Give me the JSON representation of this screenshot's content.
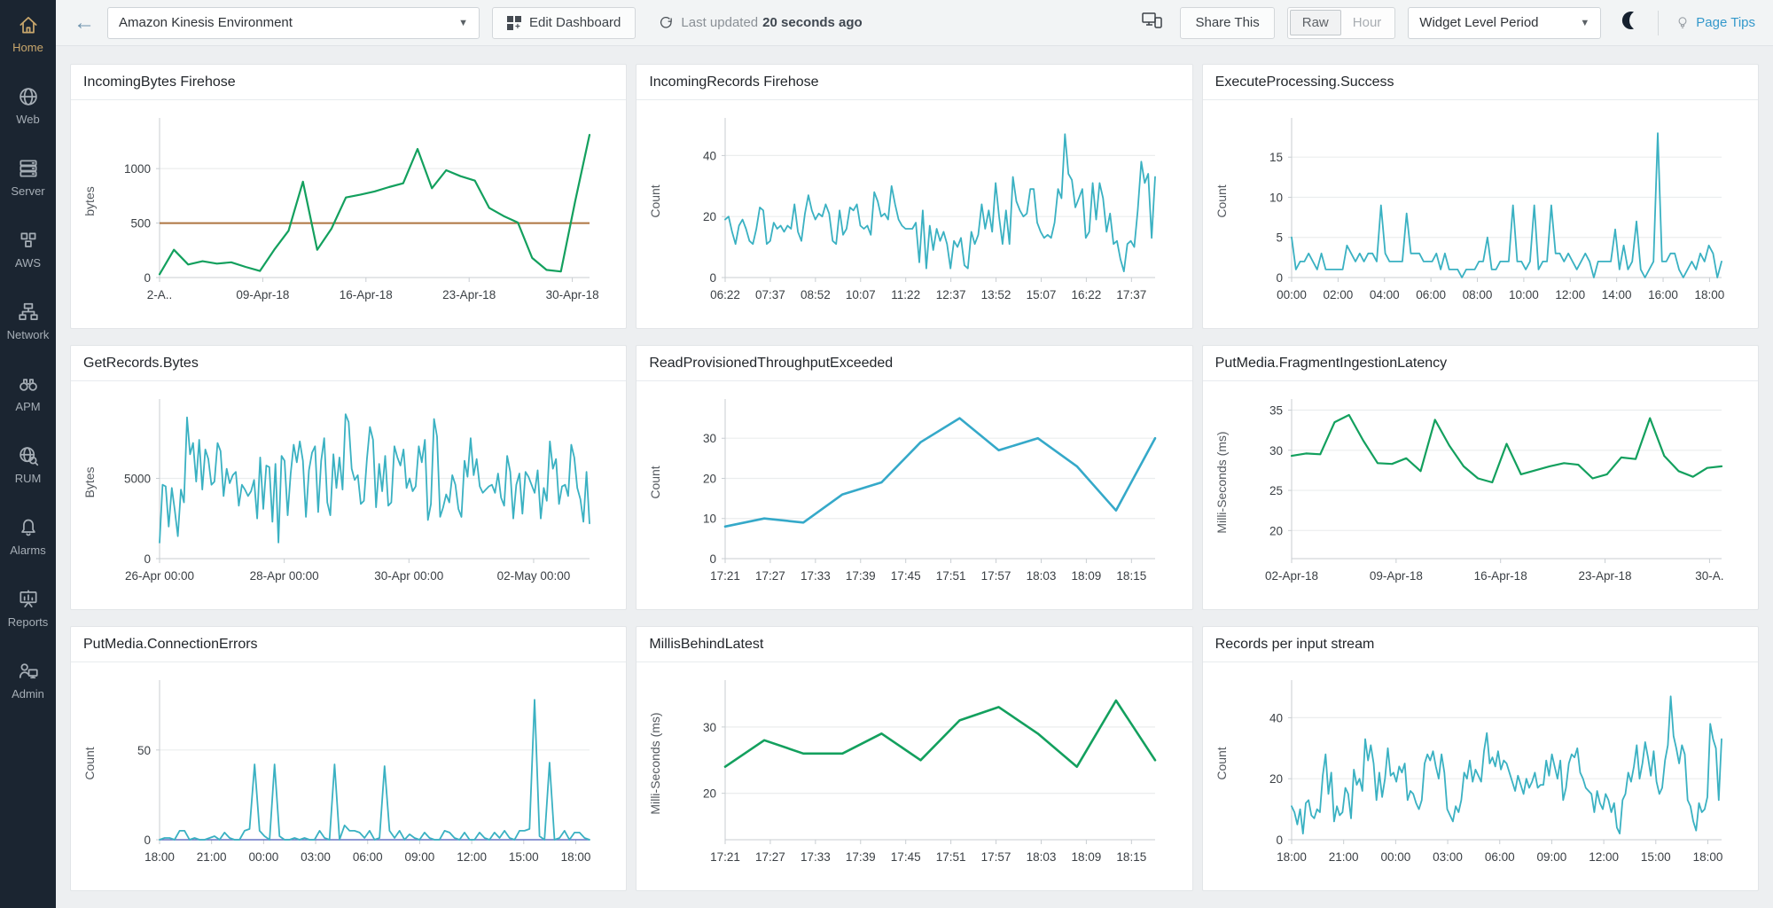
{
  "sidebar": {
    "items": [
      {
        "label": "Home",
        "icon": "home-icon",
        "active": true
      },
      {
        "label": "Web",
        "icon": "web-icon",
        "active": false
      },
      {
        "label": "Server",
        "icon": "server-icon",
        "active": false
      },
      {
        "label": "AWS",
        "icon": "aws-icon",
        "active": false
      },
      {
        "label": "Network",
        "icon": "network-icon",
        "active": false
      },
      {
        "label": "APM",
        "icon": "apm-icon",
        "active": false
      },
      {
        "label": "RUM",
        "icon": "rum-icon",
        "active": false
      },
      {
        "label": "Alarms",
        "icon": "alarms-icon",
        "active": false
      },
      {
        "label": "Reports",
        "icon": "reports-icon",
        "active": false
      },
      {
        "label": "Admin",
        "icon": "admin-icon",
        "active": false
      }
    ]
  },
  "topbar": {
    "dashboard_selector": "Amazon Kinesis Environment",
    "edit_dashboard": "Edit Dashboard",
    "last_updated_prefix": "Last updated",
    "last_updated_value": "20 seconds ago",
    "share_this": "Share This",
    "toggle_raw": "Raw",
    "toggle_hour": "Hour",
    "period_selector": "Widget Level Period",
    "page_tips": "Page Tips"
  },
  "colors": {
    "green": "#13a05e",
    "teal": "#3ab1c2",
    "threshold_orange": "#ad7440",
    "link_blue": "#3498cb",
    "sidebar_bg": "#1b2531",
    "active_gold": "#c9a76c"
  },
  "chart_data": [
    {
      "title": "IncomingBytes Firehose",
      "type": "line",
      "color": "#13a05e",
      "lw": 2.2,
      "ylabel": "bytes",
      "yticks": [
        0,
        500,
        1000
      ],
      "ylim": [
        0,
        1400
      ],
      "xticklabels": [
        "2-A..",
        "09-Apr-18",
        "16-Apr-18",
        "23-Apr-18",
        "30-Apr-18"
      ],
      "xstep": 0.24,
      "threshold": {
        "value": 500,
        "color": "#ad7440"
      },
      "values": [
        30,
        255,
        120,
        150,
        128,
        140,
        98,
        60,
        255,
        430,
        880,
        255,
        450,
        735,
        760,
        790,
        830,
        865,
        1180,
        820,
        985,
        930,
        890,
        640,
        565,
        505,
        180,
        70,
        55,
        700,
        1310
      ]
    },
    {
      "title": "IncomingRecords Firehose",
      "type": "line",
      "color": "#3ab1c2",
      "lw": 1.8,
      "ylabel": "Count",
      "yticks": [
        0,
        20,
        40
      ],
      "ylim": [
        0,
        50
      ],
      "xticklabels": [
        "06:22",
        "07:37",
        "08:52",
        "10:07",
        "11:22",
        "12:37",
        "13:52",
        "15:07",
        "16:22",
        "17:37"
      ],
      "xstep": 0.105,
      "values": [
        19,
        20,
        15,
        11,
        17,
        19,
        16,
        12,
        11,
        16,
        23,
        22,
        11,
        12,
        18,
        16,
        17,
        15,
        17,
        16,
        24,
        15,
        12,
        21,
        27,
        22,
        19,
        21,
        20,
        24,
        21,
        12,
        11,
        22,
        14,
        16,
        23,
        22,
        24,
        17,
        16,
        17,
        14,
        28,
        25,
        20,
        21,
        19,
        30,
        24,
        19,
        17,
        16,
        16,
        16,
        18,
        5,
        22,
        3,
        17,
        9,
        16,
        12,
        15,
        11,
        3,
        12,
        10,
        13,
        4,
        3,
        15,
        11,
        14,
        24,
        16,
        22,
        15,
        31,
        20,
        11,
        22,
        11,
        33,
        25,
        22,
        20,
        21,
        29,
        29,
        18,
        15,
        13,
        14,
        13,
        18,
        29,
        26,
        47,
        34,
        32,
        23,
        26,
        29,
        13,
        15,
        31,
        19,
        31,
        26,
        15,
        21,
        11,
        12,
        6,
        2,
        11,
        12,
        10,
        22,
        38,
        31,
        34,
        13,
        33
      ]
    },
    {
      "title": "ExecuteProcessing.Success",
      "type": "line",
      "color": "#3ab1c2",
      "lw": 1.8,
      "ylabel": "Count",
      "yticks": [
        0,
        5,
        10,
        15
      ],
      "ylim": [
        0,
        19
      ],
      "xticklabels": [
        "00:00",
        "02:00",
        "04:00",
        "06:00",
        "08:00",
        "10:00",
        "12:00",
        "14:00",
        "16:00",
        "18:00"
      ],
      "xstep": 0.108,
      "values": [
        5,
        1,
        2,
        2,
        3,
        2,
        1,
        3,
        1,
        1,
        1,
        1,
        1,
        4,
        3,
        2,
        3,
        2,
        3,
        3,
        2,
        9,
        3,
        2,
        2,
        2,
        2,
        8,
        3,
        3,
        3,
        2,
        2,
        2,
        3,
        1,
        3,
        1,
        1,
        1,
        0,
        1,
        1,
        1,
        2,
        2,
        5,
        1,
        1,
        2,
        2,
        2,
        9,
        2,
        2,
        1,
        2,
        9,
        1,
        2,
        2,
        9,
        3,
        3,
        2,
        3,
        2,
        1,
        2,
        3,
        2,
        0,
        2,
        2,
        2,
        2,
        6,
        1,
        4,
        1,
        2,
        7,
        1,
        0,
        1,
        2,
        18,
        2,
        2,
        3,
        3,
        1,
        0,
        1,
        2,
        1,
        3,
        2,
        4,
        3,
        0,
        2
      ]
    },
    {
      "title": "GetRecords.Bytes",
      "type": "line",
      "color": "#3ab1c2",
      "lw": 1.8,
      "ylabel": "Bytes",
      "yticks": [
        0,
        5000
      ],
      "ylim": [
        0,
        9500
      ],
      "xticklabels": [
        "26-Apr 00:00",
        "28-Apr 00:00",
        "30-Apr 00:00",
        "02-May 00:00"
      ],
      "xstep": 0.29,
      "values": [
        1000,
        4600,
        4500,
        2000,
        4400,
        3000,
        1400,
        4300,
        3500,
        8800,
        6500,
        7200,
        4800,
        7400,
        4300,
        6800,
        6200,
        4600,
        4800,
        7200,
        6700,
        3900,
        5600,
        4700,
        5200,
        5400,
        3300,
        4600,
        4300,
        3900,
        4200,
        4900,
        2500,
        6300,
        3100,
        5800,
        5700,
        2300,
        5900,
        1000,
        6400,
        6100,
        2700,
        5300,
        7100,
        6000,
        7300,
        6100,
        2600,
        5500,
        6600,
        7000,
        2900,
        6100,
        7500,
        3500,
        2700,
        6500,
        4400,
        6300,
        4300,
        9000,
        8500,
        5600,
        4900,
        5200,
        3400,
        3600,
        6200,
        8200,
        7400,
        3200,
        5900,
        4200,
        6400,
        3300,
        3500,
        7000,
        6300,
        5800,
        6800,
        4400,
        5000,
        4200,
        4500,
        7000,
        6000,
        7400,
        2400,
        3400,
        8700,
        7600,
        2600,
        3200,
        4000,
        3500,
        5200,
        4600,
        3100,
        2600,
        6100,
        5100,
        7500,
        5200,
        6200,
        4500,
        4100,
        4300,
        4500,
        4600,
        4100,
        5300,
        3800,
        3300,
        6400,
        5400,
        2500,
        4600,
        5300,
        2800,
        5400,
        5100,
        4600,
        4100,
        5500,
        2500,
        4400,
        3600,
        7300,
        5600,
        6200,
        3400,
        4500,
        4600,
        3900,
        7100,
        6300,
        4400,
        3700,
        2300,
        5400,
        2200
      ]
    },
    {
      "title": "ReadProvisionedThroughputExceeded",
      "type": "line",
      "color": "#35a9c9",
      "lw": 2.6,
      "ylabel": "Count",
      "yticks": [
        0,
        10,
        20,
        30
      ],
      "ylim": [
        0,
        38
      ],
      "xticklabels": [
        "17:21",
        "17:27",
        "17:33",
        "17:39",
        "17:45",
        "17:51",
        "17:57",
        "18:03",
        "18:09",
        "18:15"
      ],
      "xstep": 0.105,
      "values": [
        8,
        10,
        9,
        16,
        19,
        29,
        35,
        27,
        30,
        23,
        12,
        30
      ]
    },
    {
      "title": "PutMedia.FragmentIngestionLatency",
      "type": "line",
      "color": "#13a05e",
      "lw": 2.2,
      "ylabel": "Milli-Seconds (ms)",
      "yticks": [
        20,
        25,
        30,
        35
      ],
      "ylim": [
        16.5,
        35.5
      ],
      "xticklabels": [
        "02-Apr-18",
        "09-Apr-18",
        "16-Apr-18",
        "23-Apr-18",
        "30-A."
      ],
      "xstep": 0.243,
      "values": [
        29.3,
        29.6,
        29.5,
        33.5,
        34.4,
        31.2,
        28.4,
        28.3,
        29,
        27.4,
        33.8,
        30.6,
        28,
        26.5,
        26,
        30.8,
        27,
        27.5,
        28,
        28.4,
        28.2,
        26.5,
        27,
        29.1,
        28.9,
        34,
        29.3,
        27.4,
        26.7,
        27.8,
        28
      ]
    },
    {
      "title": "PutMedia.ConnectionErrors",
      "type": "line",
      "color": "#3ab1c2",
      "lw": 1.8,
      "ylabel": "Count",
      "yticks": [
        0,
        50
      ],
      "ylim": [
        0,
        85
      ],
      "xticklabels": [
        "18:00",
        "21:00",
        "00:00",
        "03:00",
        "06:00",
        "09:00",
        "12:00",
        "15:00",
        "18:00"
      ],
      "xstep": 0.121,
      "series2": {
        "color": "#6674c4",
        "value": 0
      },
      "values": [
        0,
        1,
        1,
        0,
        5,
        5,
        0,
        1,
        0,
        0,
        1,
        2,
        0,
        4,
        1,
        0,
        0,
        5,
        6,
        42,
        5,
        2,
        0,
        42,
        2,
        0,
        0,
        1,
        0,
        1,
        0,
        0,
        5,
        1,
        0,
        42,
        0,
        8,
        5,
        5,
        4,
        1,
        5,
        0,
        1,
        41,
        5,
        1,
        5,
        0,
        3,
        1,
        0,
        4,
        1,
        0,
        0,
        5,
        4,
        1,
        0,
        4,
        0,
        0,
        4,
        1,
        0,
        4,
        1,
        5,
        1,
        0,
        5,
        5,
        6,
        78,
        2,
        0,
        43,
        0,
        1,
        5,
        0,
        4,
        4,
        1,
        0
      ]
    },
    {
      "title": "MillisBehindLatest",
      "type": "line",
      "color": "#13a05e",
      "lw": 2.6,
      "ylabel": "Milli-Seconds (ms)",
      "yticks": [
        20,
        30
      ],
      "ylim": [
        13,
        36
      ],
      "xticklabels": [
        "17:21",
        "17:27",
        "17:33",
        "17:39",
        "17:45",
        "17:51",
        "17:57",
        "18:03",
        "18:09",
        "18:15"
      ],
      "xstep": 0.105,
      "values": [
        24,
        28,
        26,
        26,
        29,
        25,
        31,
        33,
        29,
        24,
        34,
        25
      ]
    },
    {
      "title": "Records per input stream",
      "type": "line",
      "color": "#3ab1c2",
      "lw": 1.8,
      "ylabel": "Count",
      "yticks": [
        0,
        20,
        40
      ],
      "ylim": [
        0,
        50
      ],
      "xticklabels": [
        "18:00",
        "21:00",
        "00:00",
        "03:00",
        "06:00",
        "09:00",
        "12:00",
        "15:00",
        "18:00"
      ],
      "xstep": 0.121,
      "values": [
        11,
        9,
        5,
        10,
        2,
        12,
        13,
        8,
        7,
        10,
        9,
        21,
        28,
        15,
        22,
        6,
        11,
        8,
        9,
        17,
        15,
        7,
        23,
        18,
        20,
        16,
        33,
        26,
        31,
        25,
        13,
        22,
        14,
        20,
        30,
        21,
        22,
        19,
        24,
        22,
        25,
        13,
        16,
        15,
        12,
        10,
        13,
        25,
        28,
        26,
        29,
        24,
        20,
        28,
        22,
        10,
        8,
        6,
        11,
        9,
        13,
        22,
        20,
        26,
        19,
        23,
        21,
        19,
        29,
        35,
        25,
        27,
        24,
        29,
        23,
        26,
        25,
        22,
        19,
        16,
        21,
        18,
        15,
        20,
        17,
        19,
        22,
        17,
        18,
        18,
        26,
        21,
        28,
        24,
        20,
        26,
        13,
        17,
        25,
        28,
        27,
        30,
        22,
        20,
        17,
        16,
        15,
        9,
        16,
        12,
        10,
        15,
        13,
        9,
        12,
        4,
        2,
        13,
        15,
        22,
        19,
        24,
        31,
        20,
        25,
        32,
        27,
        21,
        29,
        19,
        15,
        17,
        26,
        31,
        47,
        34,
        30,
        25,
        31,
        28,
        13,
        11,
        6,
        3,
        12,
        9,
        10,
        14,
        38,
        33,
        30,
        13,
        33
      ]
    }
  ]
}
